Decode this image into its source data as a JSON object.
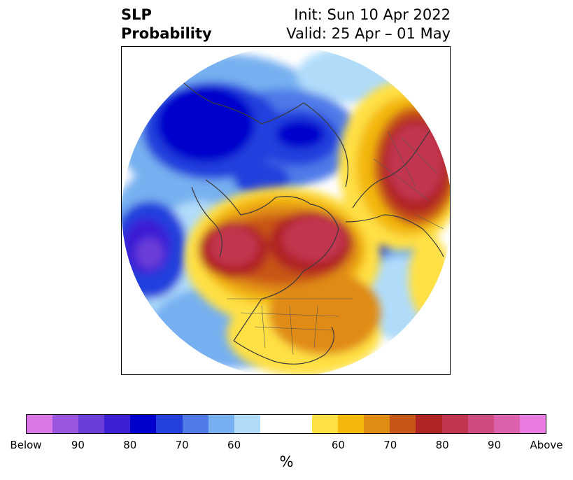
{
  "title": {
    "left_line1": "SLP",
    "left_line2": "Probability",
    "right_line1": "Init: Sun 10 Apr 2022",
    "right_line2": "Valid: 25 Apr – 01 May"
  },
  "colorbar": {
    "unit": "%",
    "below_colors": [
      "#d977e6",
      "#9a56e0",
      "#6a3ed8",
      "#3a1fd4",
      "#0000cc",
      "#2440dd",
      "#4f7ae8",
      "#77b0f0",
      "#b0dcfa"
    ],
    "neutral_color": "#ffffff",
    "above_colors": [
      "#ffe045",
      "#f3b80b",
      "#e08b12",
      "#c85618",
      "#b02424",
      "#c23450",
      "#cf4b80",
      "#dc60ac",
      "#e87ae0"
    ],
    "tick_labels": [
      "Below",
      "90",
      "80",
      "70",
      "60",
      "60",
      "70",
      "80",
      "90",
      "Above"
    ]
  }
}
